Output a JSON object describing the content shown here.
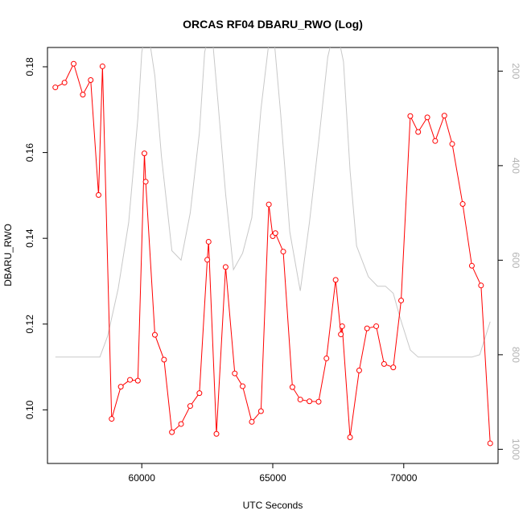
{
  "chart_data": {
    "type": "line",
    "title": "ORCAS RF04 DBARU_RWO (Log)",
    "xlabel": "UTC Seconds",
    "ylabel": "DBARU_RWO",
    "xlim": [
      56400,
      73600
    ],
    "ylim": [
      0.0875,
      0.1845
    ],
    "x_ticks": [
      60000,
      65000,
      70000
    ],
    "y_ticks": [
      0.1,
      0.12,
      0.14,
      0.16,
      0.18
    ],
    "y_tick_labels": [
      "0.10",
      "0.12",
      "0.14",
      "0.16",
      "0.18"
    ],
    "secondary_axis": {
      "ylim": [
        1030,
        150
      ],
      "inverted": true,
      "ticks": [
        200,
        400,
        600,
        800,
        1000
      ],
      "color": "#c8c8c8"
    },
    "grid": false,
    "series": [
      {
        "color": "#ff0000",
        "marker": "circle",
        "x": [
          56700,
          57050,
          57400,
          57750,
          58050,
          58350,
          58500,
          58850,
          59200,
          59550,
          59850,
          60100,
          60150,
          60500,
          60850,
          61150,
          61500,
          61850,
          62200,
          62500,
          62550,
          62850,
          63200,
          63550,
          63850,
          64200,
          64550,
          64850,
          65000,
          65100,
          65400,
          65750,
          66050,
          66400,
          66750,
          67050,
          67400,
          67600,
          67650,
          67950,
          68300,
          68600,
          68950,
          69250,
          69600,
          69900,
          70250,
          70550,
          70900,
          71200,
          71550,
          71850,
          72250,
          72600,
          72950,
          73300
        ],
        "y": [
          0.1752,
          0.1763,
          0.1807,
          0.1735,
          0.1769,
          0.1501,
          0.1801,
          0.0979,
          0.1054,
          0.107,
          0.1068,
          0.1598,
          0.1532,
          0.1175,
          0.1117,
          0.0948,
          0.0967,
          0.1009,
          0.1039,
          0.135,
          0.1392,
          0.0944,
          0.1333,
          0.1085,
          0.1055,
          0.0972,
          0.0997,
          0.1479,
          0.1405,
          0.1412,
          0.1369,
          0.1053,
          0.1024,
          0.102,
          0.1019,
          0.112,
          0.1303,
          0.1176,
          0.1195,
          0.0936,
          0.1092,
          0.119,
          0.1195,
          0.1107,
          0.1099,
          0.1255,
          0.1685,
          0.1648,
          0.1682,
          0.1627,
          0.1686,
          0.162,
          0.148,
          0.1336,
          0.129,
          0.0922
        ]
      },
      {
        "color": "#c8c8c8",
        "axis": "right",
        "marker": "none",
        "x": [
          56700,
          57500,
          58000,
          58400,
          58700,
          59100,
          59500,
          59850,
          60000,
          60200,
          60500,
          60750,
          61150,
          61500,
          61850,
          62200,
          62400,
          62650,
          62900,
          63200,
          63500,
          63850,
          64200,
          64550,
          64850,
          65000,
          65300,
          65650,
          66050,
          66400,
          66750,
          67100,
          67400,
          67700,
          67950,
          68200,
          68650,
          69000,
          69300,
          69600,
          69850,
          70250,
          70550,
          70900,
          71500,
          72100,
          72600,
          72900,
          73300
        ],
        "y": [
          805,
          805,
          805,
          805,
          760,
          660,
          520,
          300,
          160,
          100,
          210,
          380,
          580,
          600,
          500,
          330,
          160,
          100,
          260,
          460,
          620,
          585,
          510,
          280,
          140,
          100,
          290,
          540,
          665,
          520,
          350,
          170,
          100,
          180,
          410,
          570,
          635,
          655,
          655,
          670,
          720,
          790,
          805,
          805,
          805,
          805,
          805,
          800,
          730
        ]
      }
    ]
  }
}
